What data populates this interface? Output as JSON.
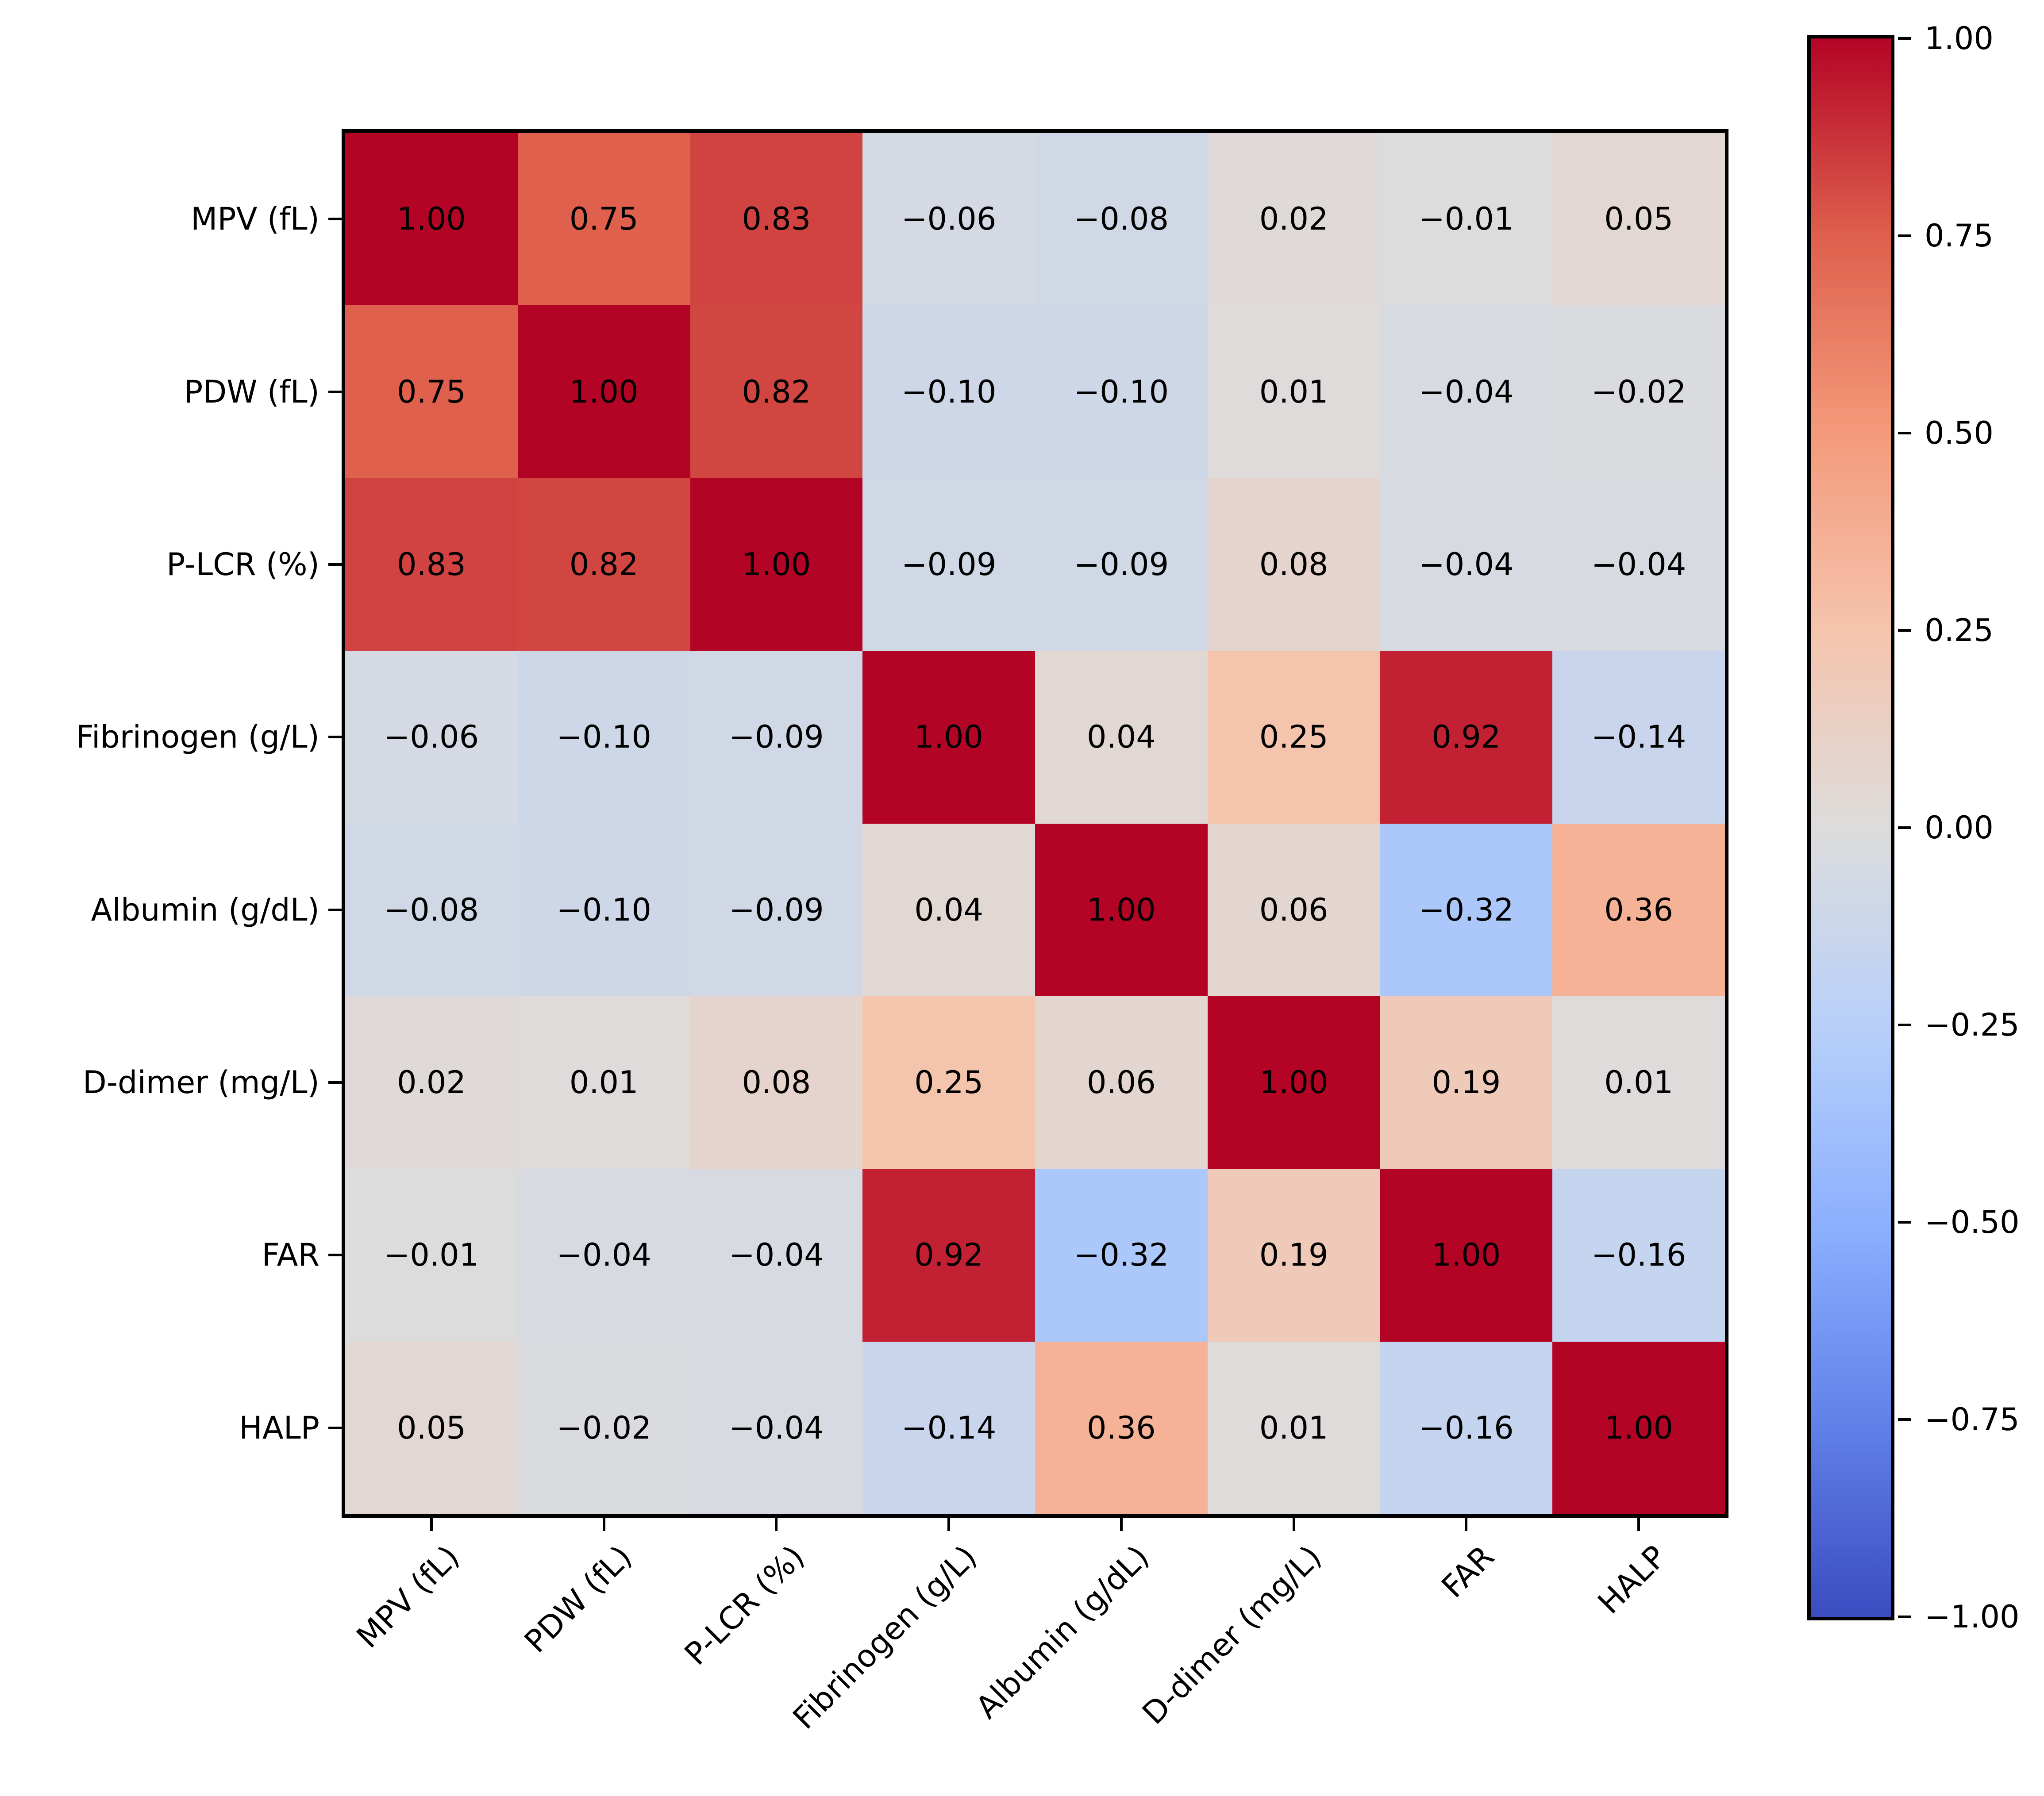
{
  "figure": {
    "background": "#ffffff",
    "title": ""
  },
  "chart_data": {
    "type": "heatmap",
    "title": "",
    "xlabel": "",
    "ylabel": "",
    "variables": [
      "MPV (fL)",
      "PDW (fL)",
      "P-LCR (%)",
      "Fibrinogen (g/L)",
      "Albumin (g/dL)",
      "D-dimer (mg/L)",
      "FAR",
      "HALP"
    ],
    "x_tick_labels": [
      "MPV (fL)",
      "PDW (fL)",
      "P-LCR (%)",
      "Fibrinogen (g/L)",
      "Albumin (g/dL)",
      "D-dimer (mg/L)",
      "FAR",
      "HALP"
    ],
    "y_tick_labels": [
      "MPV (fL)",
      "PDW (fL)",
      "P-LCR (%)",
      "Fibrinogen (g/L)",
      "Albumin (g/dL)",
      "D-dimer (mg/L)",
      "FAR",
      "HALP"
    ],
    "matrix": [
      [
        1.0,
        0.75,
        0.83,
        -0.06,
        -0.08,
        0.02,
        -0.01,
        0.05
      ],
      [
        0.75,
        1.0,
        0.82,
        -0.1,
        -0.1,
        0.01,
        -0.04,
        -0.02
      ],
      [
        0.83,
        0.82,
        1.0,
        -0.09,
        -0.09,
        0.08,
        -0.04,
        -0.04
      ],
      [
        -0.06,
        -0.1,
        -0.09,
        1.0,
        0.04,
        0.25,
        0.92,
        -0.14
      ],
      [
        -0.08,
        -0.1,
        -0.09,
        0.04,
        1.0,
        0.06,
        -0.32,
        0.36
      ],
      [
        0.02,
        0.01,
        0.08,
        0.25,
        0.06,
        1.0,
        0.19,
        0.01
      ],
      [
        -0.01,
        -0.04,
        -0.04,
        0.92,
        -0.32,
        0.19,
        1.0,
        -0.16
      ],
      [
        0.05,
        -0.02,
        -0.04,
        -0.14,
        0.36,
        0.01,
        -0.16,
        1.0
      ]
    ],
    "annotations": [
      [
        "1.00",
        "0.75",
        "0.83",
        "−0.06",
        "−0.08",
        "0.02",
        "−0.01",
        "0.05"
      ],
      [
        "0.75",
        "1.00",
        "0.82",
        "−0.10",
        "−0.10",
        "0.01",
        "−0.04",
        "−0.02"
      ],
      [
        "0.83",
        "0.82",
        "1.00",
        "−0.09",
        "−0.09",
        "0.08",
        "−0.04",
        "−0.04"
      ],
      [
        "−0.06",
        "−0.10",
        "−0.09",
        "1.00",
        "0.04",
        "0.25",
        "0.92",
        "−0.14"
      ],
      [
        "−0.08",
        "−0.10",
        "−0.09",
        "0.04",
        "1.00",
        "0.06",
        "−0.32",
        "0.36"
      ],
      [
        "0.02",
        "0.01",
        "0.08",
        "0.25",
        "0.06",
        "1.00",
        "0.19",
        "0.01"
      ],
      [
        "−0.01",
        "−0.04",
        "−0.04",
        "0.92",
        "−0.32",
        "0.19",
        "1.00",
        "−0.16"
      ],
      [
        "0.05",
        "−0.02",
        "−0.04",
        "−0.14",
        "0.36",
        "0.01",
        "−0.16",
        "1.00"
      ]
    ],
    "vmin": -1,
    "vmax": 1,
    "grid": false,
    "legend": "none",
    "annotation_color": "#000000",
    "axis_color": "#000000",
    "colormap": {
      "name": "coolwarm",
      "anchors": [
        "#3B4CC0",
        "#6282EA",
        "#8DB0FE",
        "#B8D0F9",
        "#DDDCDC",
        "#F5C4AD",
        "#F49A7B",
        "#DE604D",
        "#B40426"
      ]
    },
    "colorbar": {
      "position": "right",
      "tick_values": [
        1.0,
        0.75,
        0.5,
        0.25,
        0.0,
        -0.25,
        -0.5,
        -0.75,
        -1.0
      ],
      "tick_labels": [
        "1.00",
        "0.75",
        "0.50",
        "0.25",
        "0.00",
        "−0.25",
        "−0.50",
        "−0.75",
        "−1.00"
      ]
    }
  }
}
